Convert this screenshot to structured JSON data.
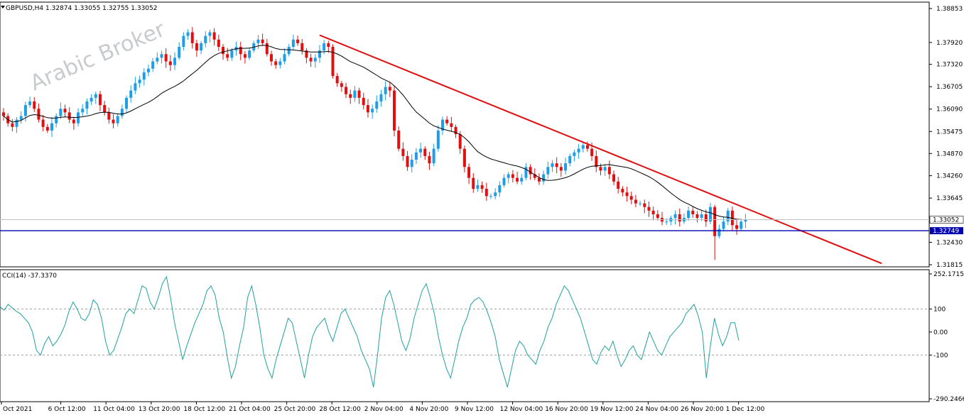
{
  "header": {
    "symbol_line": "GBPUSD,H4  1.32874 1.33055 1.32755 1.33052",
    "watermark": "Arabic Broker"
  },
  "indicator": {
    "label": "CCI(14) -37.3370"
  },
  "colors": {
    "bull": "#1e9ee8",
    "bear": "#e01010",
    "ma": "#000000",
    "trendline": "#e01010",
    "support": "#0000b4",
    "cci": "#20a0a0",
    "price_tag_bg": "#0000b4"
  },
  "chart_data": [
    {
      "type": "candlestick",
      "title": "GBPUSD,H4",
      "ylim": [
        1.31815,
        1.38853
      ],
      "yticks": [
        "1.38853",
        "1.37920",
        "1.37320",
        "1.36705",
        "1.36090",
        "1.35475",
        "1.34870",
        "1.34260",
        "1.33645",
        "1.32430",
        "1.31815"
      ],
      "xticks": [
        "Oct 2021",
        "6 Oct 12:00",
        "11 Oct 04:00",
        "13 Oct 20:00",
        "18 Oct 12:00",
        "21 Oct 04:00",
        "25 Oct 20:00",
        "28 Oct 12:00",
        "2 Nov 04:00",
        "4 Nov 20:00",
        "9 Nov 12:00",
        "12 Nov 04:00",
        "16 Nov 20:00",
        "19 Nov 12:00",
        "24 Nov 04:00",
        "26 Nov 20:00",
        "1 Dec 12:00"
      ],
      "last_price": 1.33052,
      "last_price_label": "1.33052",
      "horizontal_level": 1.32749,
      "horizontal_level_label": "1.32749",
      "trendline": [
        {
          "x": "28 Oct 00:00",
          "y": 1.3812
        },
        {
          "x": "6 Dec 04:00",
          "y": 1.3185
        }
      ],
      "close_path": [
        1.359,
        1.357,
        1.356,
        1.358,
        1.359,
        1.362,
        1.363,
        1.361,
        1.358,
        1.356,
        1.355,
        1.357,
        1.359,
        1.361,
        1.36,
        1.358,
        1.357,
        1.36,
        1.361,
        1.363,
        1.364,
        1.365,
        1.362,
        1.36,
        1.358,
        1.357,
        1.359,
        1.361,
        1.364,
        1.366,
        1.368,
        1.369,
        1.371,
        1.372,
        1.374,
        1.375,
        1.376,
        1.374,
        1.373,
        1.375,
        1.378,
        1.381,
        1.382,
        1.379,
        1.377,
        1.379,
        1.381,
        1.382,
        1.38,
        1.378,
        1.376,
        1.375,
        1.377,
        1.378,
        1.376,
        1.375,
        1.377,
        1.379,
        1.38,
        1.379,
        1.376,
        1.374,
        1.373,
        1.374,
        1.376,
        1.378,
        1.38,
        1.379,
        1.377,
        1.375,
        1.374,
        1.375,
        1.377,
        1.379,
        1.378,
        1.37,
        1.368,
        1.367,
        1.365,
        1.364,
        1.366,
        1.364,
        1.362,
        1.36,
        1.361,
        1.363,
        1.365,
        1.367,
        1.366,
        1.355,
        1.35,
        1.348,
        1.345,
        1.347,
        1.349,
        1.35,
        1.348,
        1.346,
        1.35,
        1.355,
        1.358,
        1.357,
        1.356,
        1.354,
        1.35,
        1.345,
        1.342,
        1.339,
        1.34,
        1.339,
        1.337,
        1.337,
        1.338,
        1.34,
        1.342,
        1.343,
        1.342,
        1.341,
        1.342,
        1.345,
        1.343,
        1.342,
        1.341,
        1.343,
        1.345,
        1.346,
        1.345,
        1.344,
        1.346,
        1.348,
        1.349,
        1.35,
        1.351,
        1.35,
        1.348,
        1.345,
        1.344,
        1.345,
        1.343,
        1.341,
        1.339,
        1.338,
        1.337,
        1.336,
        1.335,
        1.335,
        1.334,
        1.333,
        1.332,
        1.331,
        1.33,
        1.33,
        1.331,
        1.332,
        1.33,
        1.331,
        1.333,
        1.332,
        1.331,
        1.332,
        1.33,
        1.334,
        1.326,
        1.328,
        1.33,
        1.333,
        1.329,
        1.328,
        1.33,
        1.3305
      ],
      "cci_series": [
        110,
        95,
        120,
        105,
        90,
        80,
        60,
        40,
        0,
        -80,
        -100,
        -50,
        -20,
        -60,
        -40,
        -10,
        30,
        90,
        130,
        100,
        60,
        50,
        80,
        140,
        120,
        60,
        -40,
        -100,
        -80,
        -30,
        20,
        80,
        100,
        80,
        140,
        200,
        190,
        130,
        100,
        150,
        210,
        240,
        150,
        40,
        -40,
        -120,
        -60,
        -10,
        40,
        80,
        120,
        180,
        200,
        160,
        60,
        0,
        -110,
        -200,
        -150,
        -60,
        20,
        150,
        200,
        120,
        20,
        -100,
        -160,
        -200,
        -120,
        -60,
        0,
        60,
        40,
        -40,
        -120,
        -200,
        -100,
        -20,
        20,
        40,
        60,
        0,
        -40,
        20,
        80,
        100,
        60,
        20,
        -20,
        -80,
        -120,
        -160,
        -240,
        -100,
        60,
        150,
        180,
        120,
        40,
        -40,
        -80,
        -30,
        60,
        120,
        180,
        210,
        150,
        80,
        -20,
        -100,
        -160,
        -200,
        -120,
        -40,
        20,
        60,
        120,
        140,
        150,
        130,
        90,
        40,
        -20,
        -120,
        -180,
        -240,
        -160,
        -80,
        -40,
        -60,
        -100,
        -120,
        -140,
        -80,
        -40,
        20,
        60,
        120,
        160,
        200,
        180,
        140,
        100,
        60,
        0,
        -60,
        -120,
        -140,
        -90,
        -60,
        -80,
        -40,
        -100,
        -150,
        -120,
        -80,
        -60,
        -100,
        -120,
        -60,
        0,
        -40,
        -80,
        -100,
        -60,
        -20,
        0,
        20,
        40,
        80,
        100,
        120,
        70,
        0,
        -200,
        -60,
        60,
        -10,
        -60,
        -20,
        40,
        40,
        -37.337
      ],
      "cci_ylim": [
        -290.2466,
        252.1715
      ],
      "cci_yticks": [
        "252.1715",
        "100",
        "0.00",
        "-100",
        "-290.2466"
      ],
      "cci_levels": [
        100,
        -100
      ]
    }
  ]
}
